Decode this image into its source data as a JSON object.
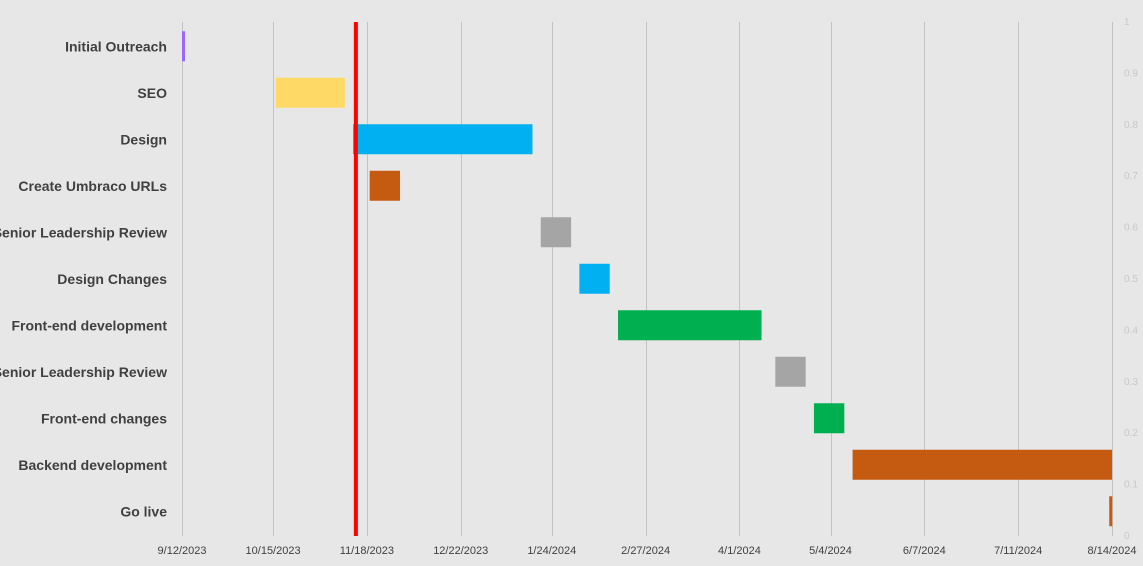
{
  "chart_data": {
    "type": "gantt",
    "title": "",
    "xlabel": "",
    "ylabel": "",
    "x_axis_type": "date",
    "xlim": [
      "2023-09-12",
      "2024-08-14"
    ],
    "x_ticks": [
      {
        "date": "2023-09-12",
        "label": "9/12/2023"
      },
      {
        "date": "2023-10-15",
        "label": "10/15/2023"
      },
      {
        "date": "2023-11-18",
        "label": "11/18/2023"
      },
      {
        "date": "2023-12-22",
        "label": "12/22/2023"
      },
      {
        "date": "2024-01-24",
        "label": "1/24/2024"
      },
      {
        "date": "2024-02-27",
        "label": "2/27/2024"
      },
      {
        "date": "2024-04-01",
        "label": "4/1/2024"
      },
      {
        "date": "2024-05-04",
        "label": "5/4/2024"
      },
      {
        "date": "2024-06-07",
        "label": "6/7/2024"
      },
      {
        "date": "2024-07-11",
        "label": "7/11/2024"
      },
      {
        "date": "2024-08-14",
        "label": "8/14/2024"
      }
    ],
    "secondary_y_ticks": [
      "0",
      "0.1",
      "0.2",
      "0.3",
      "0.4",
      "0.5",
      "0.6",
      "0.7",
      "0.8",
      "0.9",
      "1"
    ],
    "today_marker": {
      "date": "2023-11-14",
      "color": "#ff0000"
    },
    "grid": true,
    "legend": "none",
    "tasks": [
      {
        "name": "Initial Outreach",
        "start": "2023-09-12",
        "end": "2023-09-13",
        "color": "#9966ff"
      },
      {
        "name": "SEO",
        "start": "2023-10-16",
        "end": "2023-11-10",
        "color": "#ffd966"
      },
      {
        "name": "Design",
        "start": "2023-11-13",
        "end": "2024-01-17",
        "color": "#00b0f0"
      },
      {
        "name": "Create Umbraco URLs",
        "start": "2023-11-19",
        "end": "2023-11-30",
        "color": "#c55a11"
      },
      {
        "name": "Senior Leadership Review",
        "start": "2024-01-20",
        "end": "2024-01-31",
        "color": "#a5a5a5"
      },
      {
        "name": "Design Changes",
        "start": "2024-02-03",
        "end": "2024-02-14",
        "color": "#00b0f0"
      },
      {
        "name": "Front-end development",
        "start": "2024-02-17",
        "end": "2024-04-09",
        "color": "#00b050"
      },
      {
        "name": "Senior Leadership Review",
        "start": "2024-04-14",
        "end": "2024-04-25",
        "color": "#a5a5a5"
      },
      {
        "name": "Front-end changes",
        "start": "2024-04-28",
        "end": "2024-05-09",
        "color": "#00b050"
      },
      {
        "name": "Backend development",
        "start": "2024-05-12",
        "end": "2024-08-14",
        "color": "#c55a11"
      },
      {
        "name": "Go live",
        "start": "2024-08-13",
        "end": "2024-08-14",
        "color": "#c55a11"
      }
    ]
  }
}
